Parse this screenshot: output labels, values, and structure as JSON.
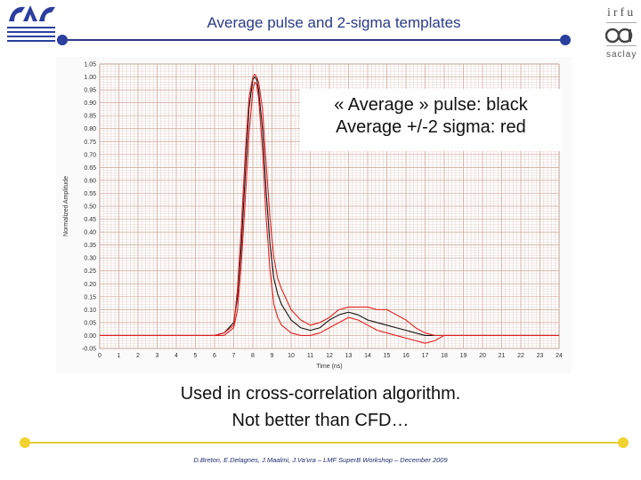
{
  "slide": {
    "title": "Average pulse and 2-sigma templates",
    "legend_line1": "« Average » pulse: black",
    "legend_line2": "Average +/-2 sigma: red",
    "note_line1": "Used in cross-correlation algorithm.",
    "note_line2": "Not better than CFD…",
    "footer": "D.Breton, E.Delagnes, J.Maalmi, J.Va'vra – LMF SuperB Workshop – December 2009"
  },
  "logos": {
    "left": "lal-logo",
    "right_line1": "irfu",
    "right_line2": "saclay"
  },
  "colors": {
    "title": "#2a3a8a",
    "accent_line": "#2a3a8a",
    "footer_line": "#e2cc38",
    "bullet_blue": "#2b3f9f",
    "bullet_yellow": "#f1d230",
    "grid": "#c8a090",
    "average": "#111111",
    "sigma": "#e02020"
  },
  "chart_data": {
    "type": "line",
    "xlabel": "Time (ns)",
    "ylabel": "Normalized Amplitude",
    "xlim": [
      0,
      24
    ],
    "ylim": [
      -0.05,
      1.05
    ],
    "xticks": [
      0,
      1,
      2,
      3,
      4,
      5,
      6,
      7,
      8,
      9,
      10,
      11,
      12,
      13,
      14,
      15,
      16,
      17,
      18,
      19,
      20,
      21,
      22,
      23,
      24
    ],
    "yticks": [
      "-0.05",
      "0.00",
      "0.05",
      "0.10",
      "0.15",
      "0.20",
      "0.25",
      "0.30",
      "0.35",
      "0.40",
      "0.45",
      "0.50",
      "0.55",
      "0.60",
      "0.65",
      "0.70",
      "0.75",
      "0.80",
      "0.85",
      "0.90",
      "0.95",
      "1.00",
      "1.05"
    ],
    "grid": true,
    "series": [
      {
        "color": "#111111",
        "x": [
          0,
          5,
          6,
          6.5,
          7,
          7.2,
          7.4,
          7.6,
          7.8,
          8,
          8.1,
          8.2,
          8.3,
          8.5,
          8.7,
          8.9,
          9.1,
          9.3,
          9.5,
          10,
          10.5,
          11,
          11.5,
          12,
          12.5,
          13,
          13.5,
          14,
          14.5,
          15,
          15.5,
          16,
          16.5,
          17,
          17.5,
          18,
          20,
          24
        ],
        "y": [
          0,
          0,
          0,
          0.01,
          0.05,
          0.15,
          0.35,
          0.62,
          0.88,
          0.99,
          1.0,
          0.99,
          0.95,
          0.8,
          0.55,
          0.35,
          0.22,
          0.16,
          0.12,
          0.06,
          0.03,
          0.02,
          0.03,
          0.06,
          0.08,
          0.09,
          0.08,
          0.06,
          0.05,
          0.04,
          0.03,
          0.02,
          0.01,
          0.0,
          0.0,
          0.0,
          0.0,
          0.0
        ]
      },
      {
        "color": "#e02020",
        "x": [
          0,
          5,
          6,
          6.5,
          7,
          7.2,
          7.4,
          7.6,
          7.8,
          8,
          8.1,
          8.2,
          8.3,
          8.5,
          8.7,
          8.9,
          9.1,
          9.3,
          9.5,
          10,
          10.5,
          11,
          11.5,
          12,
          12.5,
          13,
          13.5,
          14,
          14.5,
          15,
          15.5,
          16,
          16.5,
          17,
          17.5,
          18,
          20,
          24
        ],
        "y": [
          0,
          0,
          0,
          0.01,
          0.04,
          0.18,
          0.42,
          0.7,
          0.92,
          1.0,
          1.01,
          1.0,
          0.98,
          0.88,
          0.66,
          0.45,
          0.3,
          0.22,
          0.18,
          0.1,
          0.06,
          0.04,
          0.05,
          0.07,
          0.1,
          0.11,
          0.11,
          0.11,
          0.1,
          0.1,
          0.08,
          0.06,
          0.03,
          0.01,
          0.0,
          0.0,
          0.0,
          0.0
        ]
      },
      {
        "color": "#e02020",
        "x": [
          0,
          5,
          6,
          6.5,
          7,
          7.2,
          7.4,
          7.6,
          7.8,
          8,
          8.1,
          8.2,
          8.3,
          8.5,
          8.7,
          8.9,
          9.1,
          9.3,
          9.5,
          10,
          10.5,
          11,
          11.5,
          12,
          12.5,
          13,
          13.5,
          14,
          14.5,
          15,
          15.5,
          16,
          16.5,
          17,
          17.5,
          18,
          20,
          24
        ],
        "y": [
          0,
          0,
          0,
          0.0,
          0.03,
          0.1,
          0.28,
          0.52,
          0.78,
          0.95,
          0.98,
          0.97,
          0.92,
          0.72,
          0.45,
          0.25,
          0.12,
          0.07,
          0.04,
          0.01,
          0.0,
          0.0,
          0.01,
          0.03,
          0.05,
          0.07,
          0.06,
          0.04,
          0.02,
          0.01,
          0.0,
          -0.01,
          -0.02,
          -0.03,
          -0.02,
          0.0,
          0.0,
          0.0
        ]
      }
    ]
  }
}
